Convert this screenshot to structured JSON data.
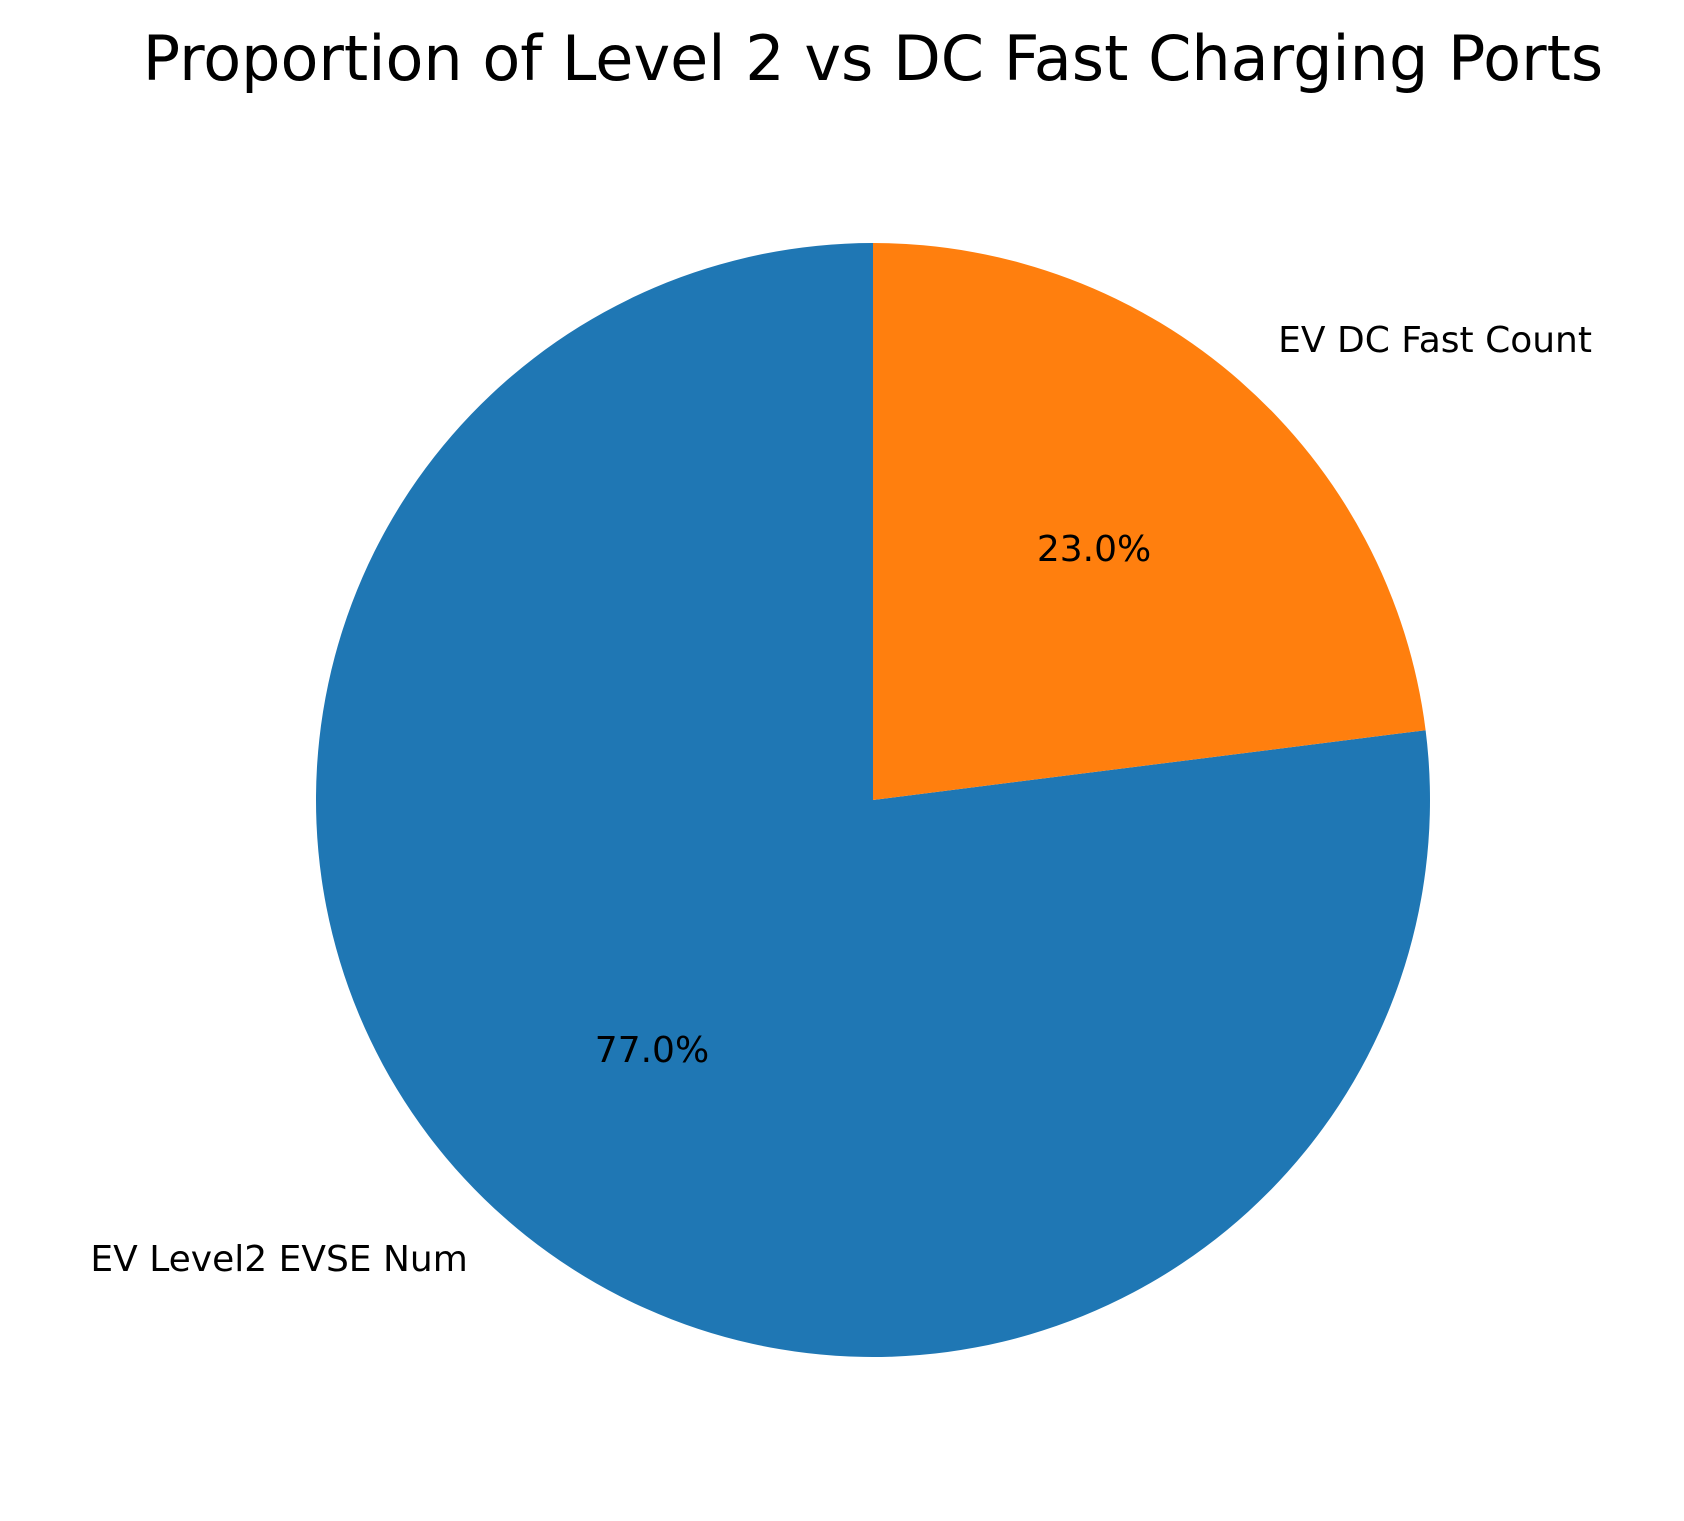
{
  "chart_data": {
    "type": "pie",
    "title": "Proportion of Level 2 vs DC Fast Charging Ports",
    "categories": [
      "EV Level2 EVSE Num",
      "EV DC Fast Count"
    ],
    "values": [
      77.0,
      23.0
    ],
    "percent_labels": [
      "77.0%",
      "23.0%"
    ],
    "colors": [
      "#1f77b4",
      "#ff7f0e"
    ],
    "start_angle_deg": 90,
    "direction": "counterclockwise",
    "legend": "none"
  }
}
